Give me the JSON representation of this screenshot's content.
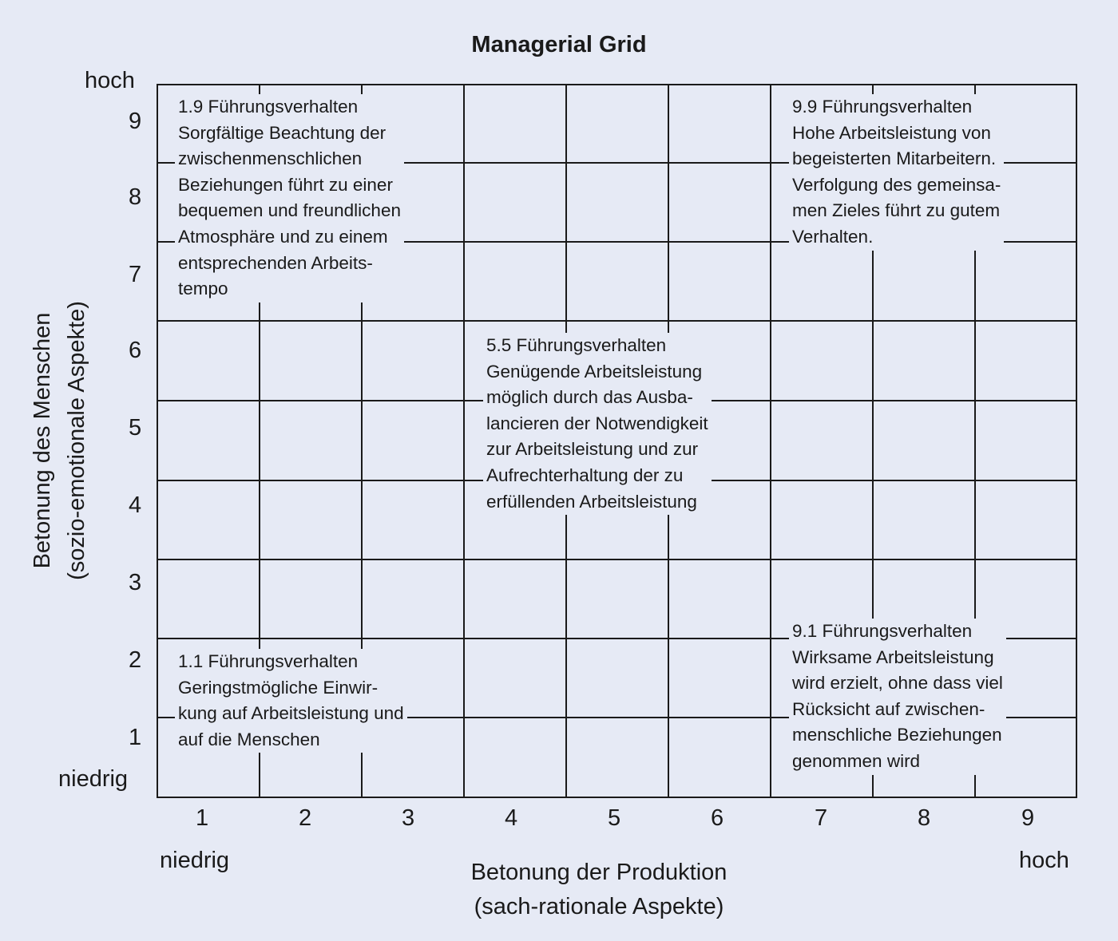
{
  "title": "Managerial Grid",
  "y_axis": {
    "high_label": "hoch",
    "low_label": "niedrig",
    "ticks": [
      "1",
      "2",
      "3",
      "4",
      "5",
      "6",
      "7",
      "8",
      "9"
    ],
    "title": "Betonung des Menschen\n(sozio-emotionale Aspekte)"
  },
  "x_axis": {
    "low_label": "niedrig",
    "high_label": "hoch",
    "ticks": [
      "1",
      "2",
      "3",
      "4",
      "5",
      "6",
      "7",
      "8",
      "9"
    ],
    "title": "Betonung der Produktion\n(sach-rationale Aspekte)"
  },
  "styles": {
    "1_9": "1.9 Führungsverhalten\nSorgfältige Beachtung der\nzwischenmenschlichen\nBeziehungen führt zu einer\nbequemen und freundlichen\nAtmosphäre und zu einem\nentsprechenden Arbeits-\ntempo",
    "9_9": "9.9 Führungsverhalten\nHohe Arbeitsleistung von\nbegeisterten Mitarbeitern.\nVerfolgung des gemeinsa-\nmen Zieles führt zu gutem\nVerhalten.",
    "5_5": "5.5 Führungsverhalten\nGenügende Arbeitsleistung\nmöglich durch das Ausba-\nlancieren der Notwendigkeit\nzur Arbeitsleistung und zur\nAufrechterhaltung der zu\nerfüllenden Arbeitsleistung",
    "1_1": "1.1 Führungsverhalten\nGeringstmögliche Einwir-\nkung auf Arbeitsleistung und\nauf die Menschen",
    "9_1": "9.1 Führungsverhalten\nWirksame Arbeitsleistung\nwird erzielt, ohne dass viel\nRücksicht auf zwischen-\nmenschliche Beziehungen\ngenommen wird"
  },
  "colors": {
    "background": "#e6eaf5",
    "line": "#1a1a1a"
  }
}
